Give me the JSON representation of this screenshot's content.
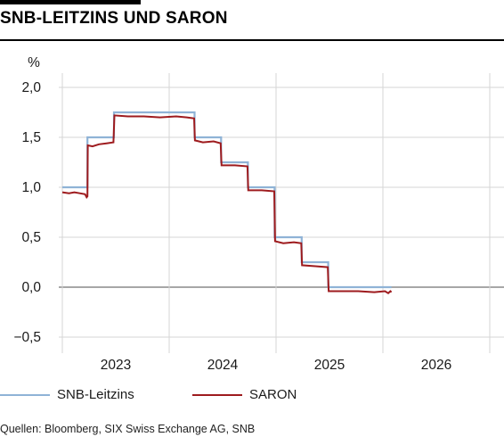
{
  "title": "SNB-LEITZINS UND SARON",
  "source": "Quellen: Bloomberg, SIX Swiss Exchange AG, SNB",
  "chart_data": {
    "type": "line",
    "title": "SNB-LEITZINS UND SARON",
    "ylabel": "%",
    "xlabel": "",
    "ylim": [
      -0.6,
      2.2
    ],
    "xlim": [
      2022.0,
      2027.0
    ],
    "y_ticks": [
      2.0,
      1.5,
      1.0,
      0.5,
      0.0,
      -0.5
    ],
    "y_tick_labels": [
      "2,0",
      "1,5",
      "1,0",
      "0,5",
      "0,0",
      "−0,5"
    ],
    "x_tick_labels": [
      "2023",
      "2024",
      "2025",
      "2026"
    ],
    "x_tick_positions": [
      2023.5,
      2024.5,
      2025.5,
      2026.5
    ],
    "grid": true,
    "legend": "bottom",
    "series": [
      {
        "name": "SNB-Leitzins",
        "color": "#8fb3d6",
        "step": true,
        "points": [
          [
            2022.988,
            1.0
          ],
          [
            2023.222,
            1.0
          ],
          [
            2023.222,
            1.5
          ],
          [
            2023.47,
            1.5
          ],
          [
            2023.47,
            1.75
          ],
          [
            2024.222,
            1.75
          ],
          [
            2024.222,
            1.5
          ],
          [
            2024.47,
            1.5
          ],
          [
            2024.47,
            1.25
          ],
          [
            2024.72,
            1.25
          ],
          [
            2024.72,
            1.0
          ],
          [
            2024.97,
            1.0
          ],
          [
            2024.97,
            0.5
          ],
          [
            2025.222,
            0.5
          ],
          [
            2025.222,
            0.25
          ],
          [
            2025.47,
            0.25
          ],
          [
            2025.47,
            0.0
          ],
          [
            2026.06,
            0.0
          ]
        ]
      },
      {
        "name": "SARON",
        "color": "#9e1b1e",
        "points": [
          [
            2022.988,
            0.95
          ],
          [
            2023.05,
            0.94
          ],
          [
            2023.1,
            0.95
          ],
          [
            2023.15,
            0.94
          ],
          [
            2023.2,
            0.93
          ],
          [
            2023.215,
            0.9
          ],
          [
            2023.222,
            0.91
          ],
          [
            2023.226,
            1.42
          ],
          [
            2023.27,
            1.41
          ],
          [
            2023.33,
            1.43
          ],
          [
            2023.4,
            1.44
          ],
          [
            2023.465,
            1.45
          ],
          [
            2023.474,
            1.72
          ],
          [
            2023.6,
            1.71
          ],
          [
            2023.75,
            1.71
          ],
          [
            2023.9,
            1.7
          ],
          [
            2024.05,
            1.71
          ],
          [
            2024.15,
            1.7
          ],
          [
            2024.218,
            1.69
          ],
          [
            2024.226,
            1.47
          ],
          [
            2024.3,
            1.45
          ],
          [
            2024.4,
            1.46
          ],
          [
            2024.466,
            1.44
          ],
          [
            2024.474,
            1.22
          ],
          [
            2024.6,
            1.22
          ],
          [
            2024.716,
            1.21
          ],
          [
            2024.724,
            0.97
          ],
          [
            2024.85,
            0.97
          ],
          [
            2024.966,
            0.96
          ],
          [
            2024.974,
            0.46
          ],
          [
            2025.05,
            0.44
          ],
          [
            2025.15,
            0.45
          ],
          [
            2025.218,
            0.44
          ],
          [
            2025.226,
            0.22
          ],
          [
            2025.35,
            0.21
          ],
          [
            2025.466,
            0.2
          ],
          [
            2025.474,
            -0.04
          ],
          [
            2025.6,
            -0.04
          ],
          [
            2025.75,
            -0.04
          ],
          [
            2025.9,
            -0.05
          ],
          [
            2026.0,
            -0.04
          ],
          [
            2026.03,
            -0.06
          ],
          [
            2026.05,
            -0.04
          ],
          [
            2026.06,
            -0.05
          ]
        ]
      }
    ]
  }
}
